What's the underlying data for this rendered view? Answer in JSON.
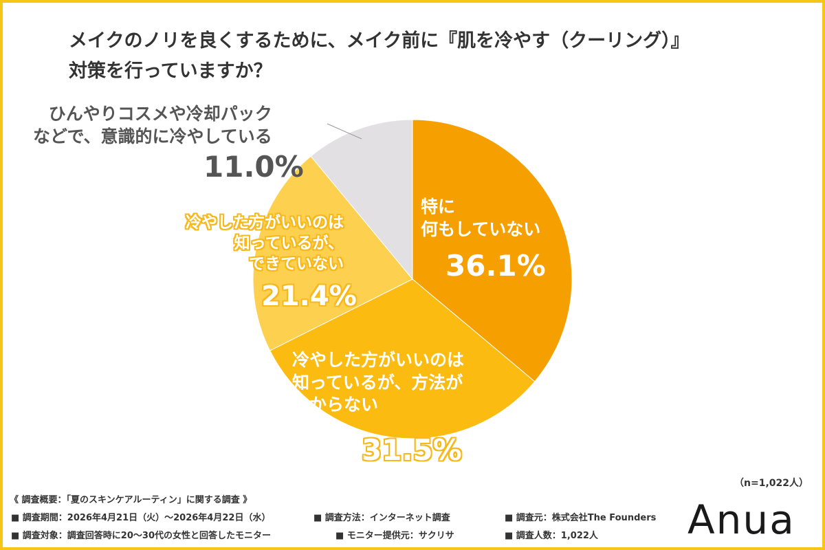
{
  "title": {
    "line1": "メイクのノリを良くするために、メイク前に『肌を冷やす（クーリング）』",
    "line2": "対策を行っていますか？"
  },
  "chart_data": {
    "type": "pie",
    "start_angle_deg": 0,
    "direction": "clockwise",
    "slices": [
      {
        "label_lines": [
          "特に",
          "何もしていない"
        ],
        "value": 36.1,
        "pct_text": "36.1%",
        "color": "#f5a000"
      },
      {
        "label_lines": [
          "冷やした方がいいのは",
          "知っているが、方法が",
          "わからない"
        ],
        "value": 31.5,
        "pct_text": "31.5%",
        "color": "#fbbb10"
      },
      {
        "label_lines": [
          "冷やした方がいいのは",
          "知っているが、",
          "できていない"
        ],
        "value": 21.4,
        "pct_text": "21.4%",
        "color": "#fdd050"
      },
      {
        "label_lines": [
          "ひんやりコスメや冷却パック",
          "などで、意識的に冷やしている"
        ],
        "value": 11.0,
        "pct_text": "11.0%",
        "color": "#e2e0e3"
      }
    ]
  },
  "sample_size": "（n=1,022人）",
  "survey": {
    "header": "《 調査概要：「夏のスキンケアルーティン」に関する調査 》",
    "period": "■ 調査期間：2026年4月21日（火）～2026年4月22日（水）",
    "method": "■ 調査方法：インターネット調査",
    "source": "■ 調査元：株式会社The Founders",
    "target": "■ 調査対象：調査回答時に20～30代の女性と回答したモニター",
    "provider": "■ モニター提供元：サクリサ",
    "count": "■ 調査人数：1,022人"
  },
  "logo": "Anua",
  "colors": {
    "frame": "#f5c518",
    "text": "#333333"
  }
}
